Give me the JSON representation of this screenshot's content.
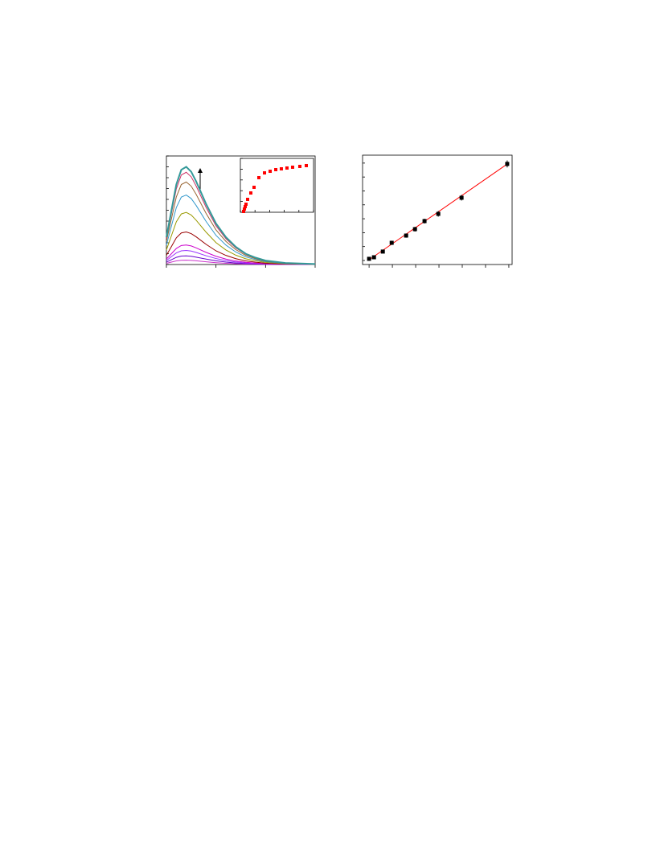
{
  "chart_data": [
    {
      "type": "line",
      "x": [
        0,
        1,
        2,
        3,
        4,
        5,
        6,
        8,
        10,
        12,
        14,
        16,
        18,
        20,
        24,
        30
      ],
      "xlim": [
        0,
        30
      ],
      "xticks": [
        0,
        10,
        20,
        30
      ],
      "ylim": [
        0,
        10
      ],
      "yticks": [
        0,
        1,
        2,
        3,
        4,
        5,
        6,
        7,
        8,
        9,
        10
      ],
      "series": [
        {
          "color": "#cc33cc",
          "values": [
            0.11,
            0.22,
            0.33,
            0.39,
            0.4,
            0.38,
            0.34,
            0.25,
            0.17,
            0.11,
            0.07,
            0.04,
            0.03,
            0.02,
            0.01,
            0
          ]
        },
        {
          "color": "#6600cc",
          "values": [
            0.22,
            0.44,
            0.66,
            0.78,
            0.8,
            0.76,
            0.68,
            0.5,
            0.34,
            0.22,
            0.14,
            0.09,
            0.06,
            0.03,
            0.01,
            0
          ]
        },
        {
          "color": "#9933ff",
          "values": [
            0.36,
            0.72,
            1.07,
            1.26,
            1.3,
            1.24,
            1.11,
            0.81,
            0.55,
            0.36,
            0.23,
            0.14,
            0.09,
            0.05,
            0.02,
            0.01
          ]
        },
        {
          "color": "#cc00cc",
          "values": [
            0.5,
            0.99,
            1.48,
            1.75,
            1.8,
            1.71,
            1.53,
            1.12,
            0.76,
            0.5,
            0.32,
            0.2,
            0.13,
            0.07,
            0.03,
            0.01
          ]
        },
        {
          "color": "#990000",
          "values": [
            0.84,
            1.65,
            2.46,
            2.91,
            3.0,
            2.85,
            2.55,
            1.86,
            1.26,
            0.84,
            0.54,
            0.33,
            0.21,
            0.12,
            0.05,
            0.02
          ]
        },
        {
          "color": "#999900",
          "values": [
            1.34,
            2.64,
            3.94,
            4.66,
            4.8,
            4.56,
            4.08,
            2.98,
            2.02,
            1.34,
            0.86,
            0.53,
            0.34,
            0.19,
            0.07,
            0.02
          ]
        },
        {
          "color": "#3399cc",
          "values": [
            1.79,
            3.52,
            5.25,
            6.21,
            6.4,
            6.08,
            5.44,
            3.97,
            2.69,
            1.79,
            1.15,
            0.7,
            0.45,
            0.26,
            0.1,
            0.03
          ]
        },
        {
          "color": "#996633",
          "values": [
            2.13,
            4.18,
            6.23,
            7.37,
            7.6,
            7.22,
            6.46,
            4.71,
            3.19,
            2.13,
            1.37,
            0.84,
            0.53,
            0.3,
            0.11,
            0.04
          ]
        },
        {
          "color": "#cc3366",
          "values": [
            2.38,
            4.68,
            6.97,
            8.25,
            8.5,
            8.08,
            7.23,
            5.27,
            3.57,
            2.38,
            1.53,
            0.94,
            0.6,
            0.34,
            0.13,
            0.04
          ]
        },
        {
          "color": "#339999",
          "values": [
            2.52,
            4.95,
            7.38,
            8.73,
            9.0,
            8.55,
            7.65,
            5.58,
            3.78,
            2.52,
            1.62,
            0.99,
            0.63,
            0.36,
            0.14,
            0.05
          ]
        }
      ]
    },
    {
      "type": "scatter",
      "x": [
        0.44,
        0.55,
        0.66,
        0.77,
        0.99,
        1.43,
        1.87,
        2.53,
        3.3,
        4.07,
        4.84,
        5.6,
        6.37,
        7.14,
        8.13,
        9.01
      ],
      "values": [
        0.15,
        0.6,
        1.04,
        1.49,
        2.39,
        3.58,
        4.63,
        6.42,
        7.31,
        7.61,
        7.91,
        8.06,
        8.21,
        8.36,
        8.51,
        8.66
      ],
      "color": "#ff0000",
      "xlim": [
        0,
        10
      ],
      "xticks": [
        0,
        2,
        4,
        6,
        8,
        10
      ],
      "ylim": [
        0,
        10
      ],
      "yticks": [
        0,
        2,
        4,
        6,
        8,
        10
      ]
    },
    {
      "type": "errorbar",
      "x": [
        0,
        0.21,
        0.59,
        0.97,
        1.59,
        1.97,
        2.38,
        2.97,
        3.97,
        5.93
      ],
      "values": [
        0.12,
        0.23,
        0.64,
        1.27,
        1.79,
        2.25,
        2.83,
        3.35,
        4.51,
        6.94
      ],
      "errors": [
        0.1,
        0.1,
        0.12,
        0.15,
        0.15,
        0.17,
        0.17,
        0.2,
        0.2,
        0.25
      ],
      "color": "#000000",
      "fit": {
        "slope": 1.16,
        "intercept": 0.05,
        "color": "#ff0000"
      },
      "xlim": [
        -0.28,
        6.14
      ],
      "xticks": [
        0,
        1,
        2,
        3,
        4,
        5,
        6
      ],
      "ylim": [
        -0.29,
        7.57
      ],
      "yticks": [
        0,
        1,
        2,
        3,
        4,
        5,
        6,
        7
      ]
    }
  ]
}
